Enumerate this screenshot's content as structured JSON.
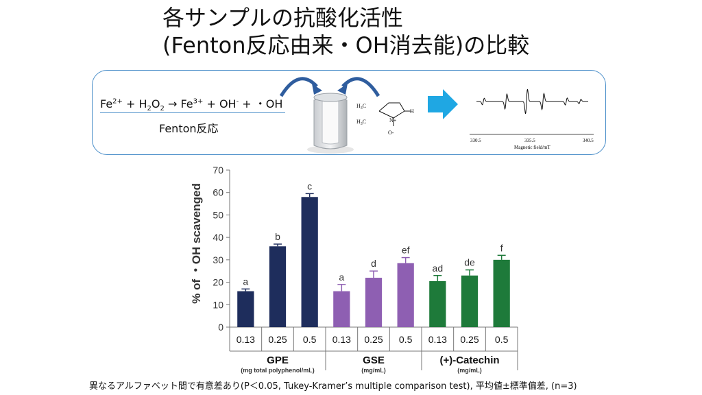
{
  "header": {
    "title_line1": "各サンプルの抗酸化活性",
    "title_line2": "(Fenton反応由来・OH消去能)の比較"
  },
  "reaction": {
    "fe2": "Fe",
    "fe2_sup": "2+",
    "plus1": " + H",
    "h2o2_sub1": "2",
    "o": "O",
    "h2o2_sub2": "2",
    "arrow": " → ",
    "fe3": " Fe",
    "fe3_sup": "3+",
    "oh_part": " + OH",
    "oh_sup": "-",
    "radical": " + ・OH",
    "label": "Fenton反応"
  },
  "structure": {
    "h3c_top": "H",
    "h3c_top_sub": "3",
    "h3c_top_c": "C",
    "h3c_bot": "H",
    "h3c_bot_sub": "3",
    "h3c_bot_c": "C",
    "n_plus": "N+",
    "o_minus": "O-",
    "h": "H"
  },
  "esr": {
    "xaxis_label": "Magnetic field/mT",
    "ticks": [
      "330.5",
      "335.5",
      "340.5"
    ]
  },
  "chart_data": {
    "type": "bar",
    "ylabel": "% of ・OH scavenged",
    "ylim": [
      0,
      70
    ],
    "yticks": [
      0,
      10,
      20,
      30,
      40,
      50,
      60,
      70
    ],
    "bars": [
      {
        "group": "GPE",
        "category": "0.13",
        "value": 16,
        "err": 1,
        "letter": "a",
        "color": "#1e2d5c"
      },
      {
        "group": "GPE",
        "category": "0.25",
        "value": 36,
        "err": 1,
        "letter": "b",
        "color": "#1e2d5c"
      },
      {
        "group": "GPE",
        "category": "0.5",
        "value": 58,
        "err": 1.5,
        "letter": "c",
        "color": "#1e2d5c"
      },
      {
        "group": "GSE",
        "category": "0.13",
        "value": 16,
        "err": 3,
        "letter": "a",
        "color": "#8e5fb2"
      },
      {
        "group": "GSE",
        "category": "0.25",
        "value": 22,
        "err": 3,
        "letter": "d",
        "color": "#8e5fb2"
      },
      {
        "group": "GSE",
        "category": "0.5",
        "value": 28.5,
        "err": 2.5,
        "letter": "ef",
        "color": "#8e5fb2"
      },
      {
        "group": "(+)-Catechin",
        "category": "0.13",
        "value": 20.5,
        "err": 2.5,
        "letter": "ad",
        "color": "#1e7a3a"
      },
      {
        "group": "(+)-Catechin",
        "category": "0.25",
        "value": 23,
        "err": 2.5,
        "letter": "de",
        "color": "#1e7a3a"
      },
      {
        "group": "(+)-Catechin",
        "category": "0.5",
        "value": 30,
        "err": 2,
        "letter": "f",
        "color": "#1e7a3a"
      }
    ],
    "groups": [
      {
        "name": "GPE",
        "unit": "(mg total polyphenol/mL)"
      },
      {
        "name": "GSE",
        "unit": "(mg/mL)"
      },
      {
        "name": "(+)-Catechin",
        "unit": "(mg/mL)"
      }
    ]
  },
  "footnote": "異なるアルファベット間で有意差あり(P＜0.05, Tukey-Kramer’s multiple comparison test), 平均値±標準偏差, (n=3)"
}
